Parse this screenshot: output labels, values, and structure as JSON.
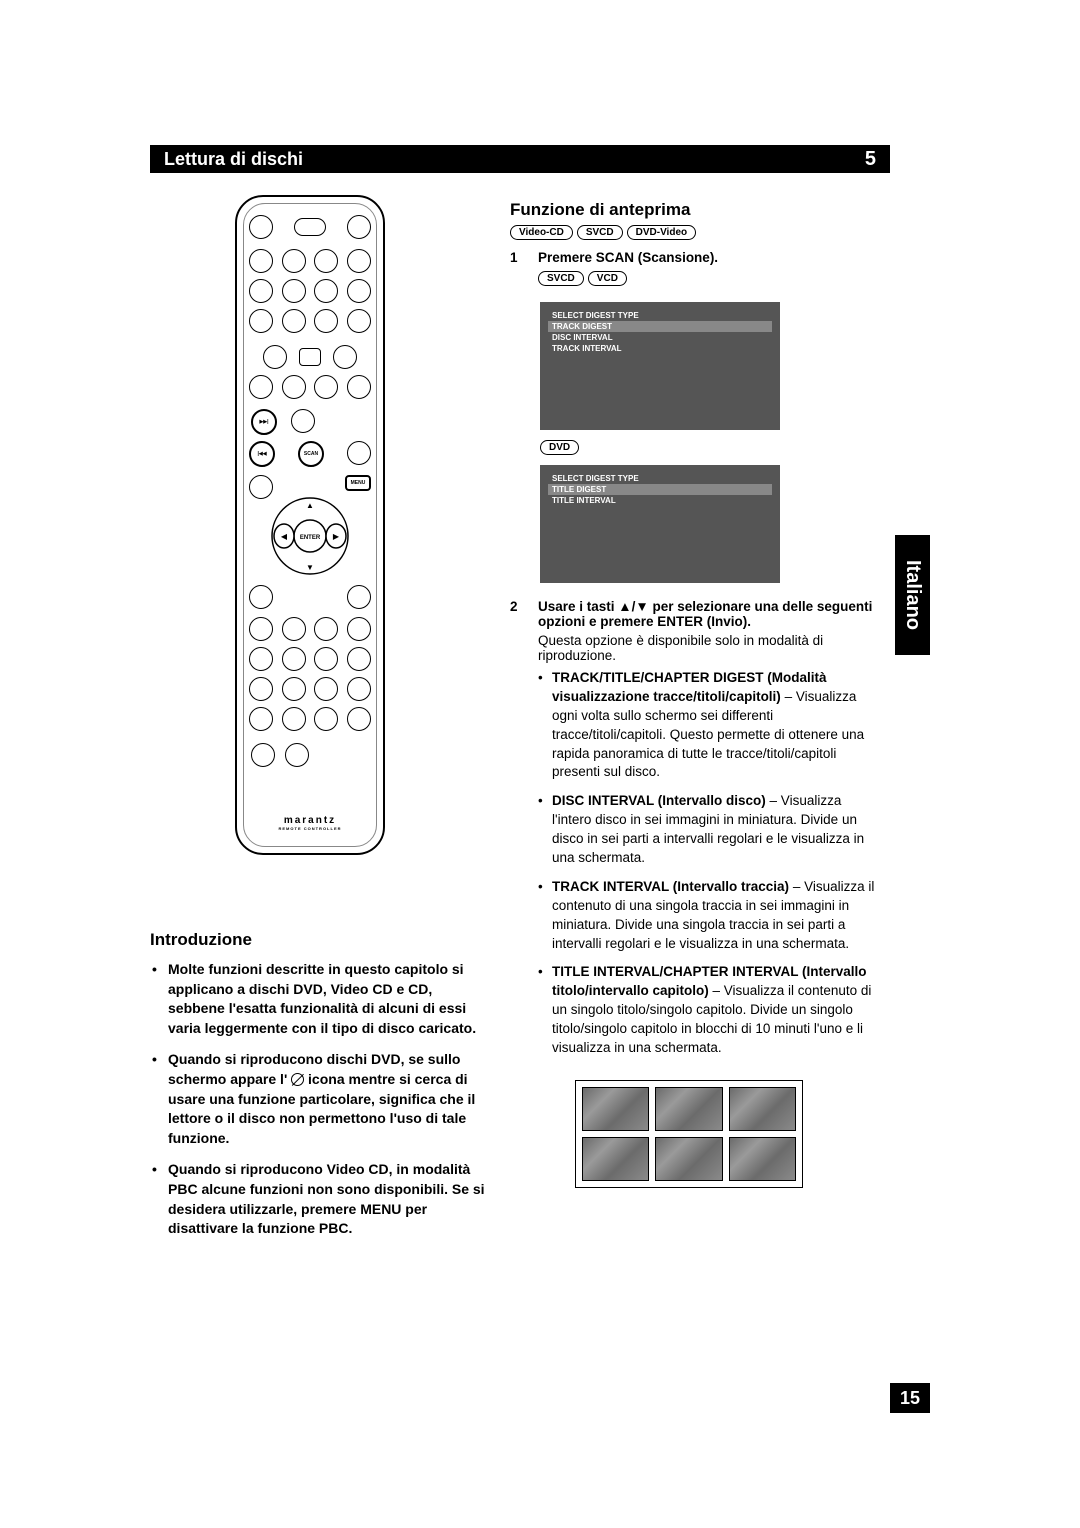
{
  "header": {
    "title": "Lettura di dischi",
    "chapter": "5"
  },
  "side_tab": "Italiano",
  "page_number": "15",
  "remote": {
    "brand": "marantz",
    "brand_sub": "REMOTE CONTROLLER",
    "scan_label": "SCAN",
    "menu_label": "MENU",
    "enter_label": "ENTER"
  },
  "left": {
    "title": "Introduzione",
    "bullets": [
      "Molte funzioni descritte in questo capitolo si applicano a dischi DVD, Video CD e CD, sebbene l'esatta funzionalità di alcuni di essi varia leggermente con il tipo di disco caricato.",
      "Quando si riproducono dischi DVD, se sullo schermo appare l' {ICON} icona mentre si cerca di usare una funzione particolare, significa che il lettore o il disco non permettono l'uso di tale funzione.",
      "Quando si riproducono Video CD, in modalità PBC alcune funzioni non sono disponibili. Se si desidera utilizzarle, premere MENU per disattivare la funzione PBC."
    ]
  },
  "right": {
    "title": "Funzione di anteprima",
    "format_pills": [
      "Video-CD",
      "SVCD",
      "DVD-Video"
    ],
    "step1": {
      "num": "1",
      "text": "Premere SCAN (Scansione).",
      "pills_a": [
        "SVCD",
        "VCD"
      ],
      "screen_a": {
        "header": "SELECT DIGEST TYPE",
        "highlight": "TRACK DIGEST",
        "items": [
          "DISC INTERVAL",
          "TRACK INTERVAL"
        ]
      },
      "pill_b": "DVD",
      "screen_b": {
        "header": "SELECT DIGEST TYPE",
        "highlight": "TITLE DIGEST",
        "items": [
          "TITLE INTERVAL"
        ]
      }
    },
    "step2": {
      "num": "2",
      "text": "Usare i tasti ▲/▼ per selezionare una delle seguenti opzioni e premere ENTER (Invio).",
      "note": "Questa opzione è disponibile solo in modalità di riproduzione.",
      "bullets": [
        {
          "bold": "TRACK/TITLE/CHAPTER DIGEST (Modalità visualizzazione tracce/titoli/capitoli)",
          "tail": " – Visualizza ogni volta sullo schermo sei differenti tracce/titoli/capitoli. Questo permette di ottenere una rapida panoramica di tutte le tracce/titoli/capitoli presenti sul disco."
        },
        {
          "bold": "DISC INTERVAL (Intervallo disco)",
          "tail": " – Visualizza l'intero disco in sei immagini in miniatura. Divide un disco in sei parti a intervalli regolari e le visualizza in una schermata."
        },
        {
          "bold": "TRACK INTERVAL (Intervallo traccia)",
          "tail": " – Visualizza il contenuto di una singola traccia in sei immagini in miniatura. Divide una singola traccia in sei parti a intervalli regolari e le visualizza in una schermata."
        },
        {
          "bold": "TITLE INTERVAL/CHAPTER INTERVAL (Intervallo titolo/intervallo capitolo)",
          "tail": " – Visualizza il contenuto di un singolo titolo/singolo capitolo. Divide un singolo titolo/singolo capitolo in blocchi di 10 minuti l'uno e li visualizza in una schermata."
        }
      ]
    }
  }
}
